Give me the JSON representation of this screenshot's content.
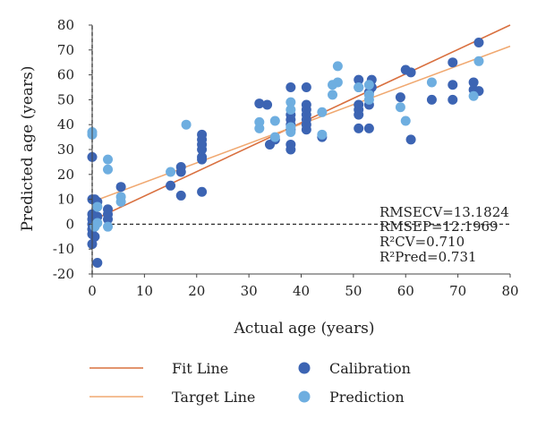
{
  "chart_data": {
    "type": "scatter",
    "xlabel": "Actual age (years)",
    "ylabel": "Predicted age (years)",
    "xlim": [
      0,
      80
    ],
    "ylim": [
      -20,
      80
    ],
    "xticks": [
      "0",
      "10",
      "20",
      "30",
      "40",
      "50",
      "60",
      "70",
      "80"
    ],
    "yticks": [
      "-20",
      "-10",
      "0",
      "10",
      "20",
      "30",
      "40",
      "50",
      "60",
      "70",
      "80"
    ],
    "grid": false,
    "legend_position": "bottom",
    "stats": [
      "RMSECV=13.1824",
      "RMSEP=12.1969",
      "R²CV=0.710",
      "R²Pred=0.731"
    ],
    "lines": [
      {
        "name": "Fit Line",
        "color": "#d9703f",
        "x": [
          0,
          80
        ],
        "y": [
          1.5,
          80
        ]
      },
      {
        "name": "Target Line",
        "color": "#f0a870",
        "x": [
          0,
          80
        ],
        "y": [
          9,
          71.5
        ]
      }
    ],
    "series": [
      {
        "name": "Calibration",
        "color": "#3c64b3",
        "points": [
          [
            0,
            -8
          ],
          [
            0,
            -4
          ],
          [
            0,
            -2
          ],
          [
            0,
            0
          ],
          [
            0,
            2
          ],
          [
            0,
            4
          ],
          [
            0,
            10
          ],
          [
            0,
            27
          ],
          [
            0.5,
            -5
          ],
          [
            0.5,
            1
          ],
          [
            0.5,
            10
          ],
          [
            1,
            -15.5
          ],
          [
            1,
            3
          ],
          [
            1,
            9
          ],
          [
            3,
            2
          ],
          [
            3,
            4
          ],
          [
            3,
            6
          ],
          [
            5.5,
            15
          ],
          [
            15,
            15.5
          ],
          [
            17,
            11.5
          ],
          [
            17,
            21
          ],
          [
            17,
            23
          ],
          [
            21,
            13
          ],
          [
            21,
            26
          ],
          [
            21,
            27
          ],
          [
            21,
            30
          ],
          [
            21,
            32
          ],
          [
            21,
            34
          ],
          [
            21,
            36
          ],
          [
            32,
            48.5
          ],
          [
            33.5,
            48
          ],
          [
            34,
            32
          ],
          [
            35,
            34
          ],
          [
            38,
            30
          ],
          [
            38,
            32
          ],
          [
            38,
            38
          ],
          [
            38,
            40
          ],
          [
            38,
            42
          ],
          [
            38,
            44
          ],
          [
            38,
            55
          ],
          [
            41,
            38
          ],
          [
            41,
            40
          ],
          [
            41,
            42
          ],
          [
            41,
            44
          ],
          [
            41,
            46
          ],
          [
            41,
            48
          ],
          [
            41,
            55
          ],
          [
            44,
            35
          ],
          [
            51,
            38.5
          ],
          [
            51,
            44
          ],
          [
            51,
            46
          ],
          [
            51,
            48
          ],
          [
            51,
            55
          ],
          [
            51,
            58
          ],
          [
            53,
            38.5
          ],
          [
            53,
            48
          ],
          [
            53,
            53
          ],
          [
            53.5,
            55
          ],
          [
            53.5,
            58
          ],
          [
            59,
            51
          ],
          [
            60,
            62
          ],
          [
            61,
            34
          ],
          [
            61,
            61
          ],
          [
            65,
            50
          ],
          [
            69,
            50
          ],
          [
            69,
            56
          ],
          [
            69,
            65
          ],
          [
            73,
            54
          ],
          [
            73,
            57
          ],
          [
            74,
            53.5
          ],
          [
            74,
            73
          ]
        ]
      },
      {
        "name": "Prediction",
        "color": "#6eaee0",
        "points": [
          [
            0,
            36
          ],
          [
            0,
            37
          ],
          [
            0.5,
            -1
          ],
          [
            1,
            0.5
          ],
          [
            1,
            7
          ],
          [
            3,
            -1
          ],
          [
            3,
            22
          ],
          [
            3,
            26
          ],
          [
            5.5,
            9
          ],
          [
            5.5,
            11
          ],
          [
            15,
            21
          ],
          [
            18,
            40
          ],
          [
            32,
            38.5
          ],
          [
            32,
            41
          ],
          [
            35,
            41.5
          ],
          [
            35,
            35
          ],
          [
            38,
            37
          ],
          [
            38,
            39
          ],
          [
            38,
            46
          ],
          [
            38,
            49
          ],
          [
            44,
            45
          ],
          [
            44,
            36
          ],
          [
            46,
            52
          ],
          [
            46,
            56
          ],
          [
            47,
            57
          ],
          [
            47,
            63.5
          ],
          [
            51,
            55
          ],
          [
            53,
            50
          ],
          [
            53,
            52
          ],
          [
            53,
            56
          ],
          [
            59,
            47
          ],
          [
            60,
            41.5
          ],
          [
            65,
            57
          ],
          [
            73,
            51.5
          ],
          [
            74,
            65.5
          ]
        ]
      }
    ]
  }
}
